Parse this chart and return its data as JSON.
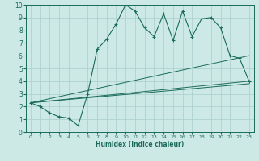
{
  "xlabel": "Humidex (Indice chaleur)",
  "bg_color": "#cce9e5",
  "line_color": "#1a6b5a",
  "grid_color": "#aacfcb",
  "xlim": [
    -0.5,
    23.5
  ],
  "ylim": [
    0,
    10
  ],
  "xticks": [
    0,
    1,
    2,
    3,
    4,
    5,
    6,
    7,
    8,
    9,
    10,
    11,
    12,
    13,
    14,
    15,
    16,
    17,
    18,
    19,
    20,
    21,
    22,
    23
  ],
  "yticks": [
    0,
    1,
    2,
    3,
    4,
    5,
    6,
    7,
    8,
    9,
    10
  ],
  "main_line": {
    "x": [
      0,
      1,
      2,
      3,
      4,
      5,
      6,
      7,
      8,
      9,
      10,
      11,
      12,
      13,
      14,
      15,
      16,
      17,
      18,
      19,
      20,
      21,
      22,
      23
    ],
    "y": [
      2.3,
      2.0,
      1.5,
      1.2,
      1.1,
      0.5,
      3.0,
      6.5,
      7.3,
      8.5,
      10.0,
      9.5,
      8.2,
      7.5,
      9.3,
      7.2,
      9.5,
      7.5,
      8.9,
      9.0,
      8.2,
      6.0,
      5.8,
      4.0
    ]
  },
  "linear_lines": [
    {
      "x": [
        0,
        23
      ],
      "y": [
        2.3,
        6.0
      ]
    },
    {
      "x": [
        0,
        23
      ],
      "y": [
        2.3,
        4.0
      ]
    },
    {
      "x": [
        0,
        23
      ],
      "y": [
        2.3,
        3.8
      ]
    }
  ]
}
